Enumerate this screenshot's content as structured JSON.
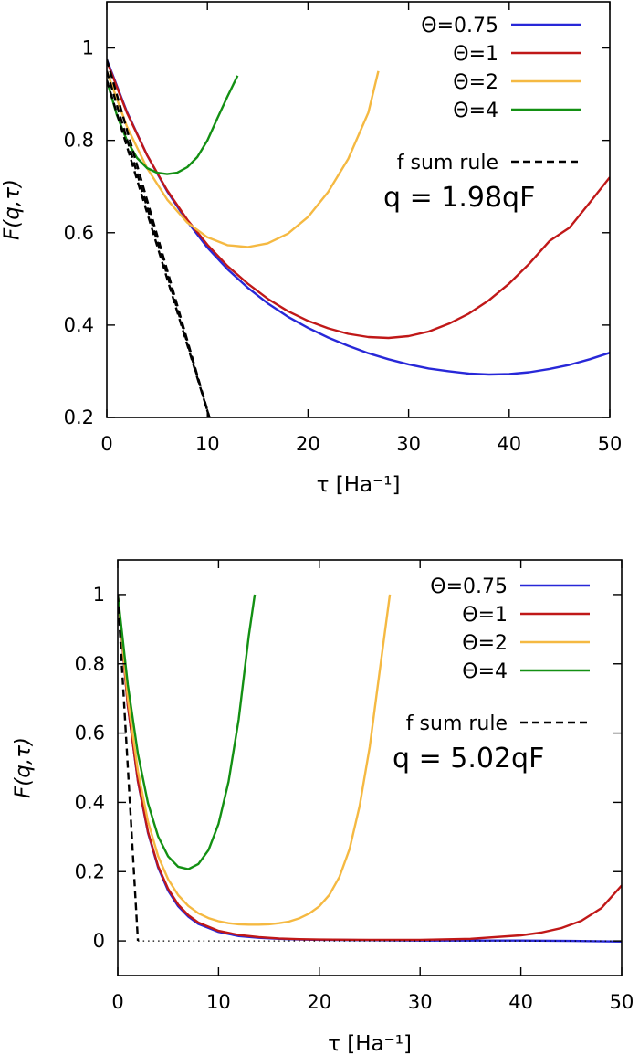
{
  "colors": {
    "theta_0.75": "#2828d8",
    "theta_1": "#c01818",
    "theta_2": "#f5b942",
    "theta_4": "#139013",
    "sum_rule": "#000000"
  },
  "chart_data": [
    {
      "type": "line",
      "xlabel": "τ [Ha⁻¹]",
      "ylabel": "F(q,τ)",
      "xlim": [
        0,
        50
      ],
      "ylim": [
        0.2,
        1.1
      ],
      "xticks": [
        "0",
        "10",
        "20",
        "30",
        "40",
        "50"
      ],
      "yticks": [
        "0.2",
        "0.4",
        "0.6",
        "0.8",
        "1"
      ],
      "grid": false,
      "legend": "top-right",
      "annotation": "q = 1.98qF",
      "series": [
        {
          "name": "Θ=0.75",
          "x": [
            0,
            2,
            4,
            6,
            8,
            10,
            12,
            14,
            16,
            18,
            20,
            22,
            24,
            26,
            28,
            30,
            32,
            34,
            36,
            38,
            40,
            42,
            44,
            46,
            48,
            50
          ],
          "y": [
            0.975,
            0.862,
            0.768,
            0.69,
            0.624,
            0.568,
            0.521,
            0.481,
            0.447,
            0.418,
            0.394,
            0.373,
            0.355,
            0.339,
            0.326,
            0.315,
            0.306,
            0.3,
            0.295,
            0.293,
            0.294,
            0.298,
            0.305,
            0.314,
            0.326,
            0.34
          ]
        },
        {
          "name": "Θ=1",
          "x": [
            0,
            2,
            4,
            6,
            8,
            10,
            12,
            14,
            16,
            18,
            20,
            22,
            24,
            26,
            28,
            30,
            32,
            34,
            36,
            38,
            40,
            42,
            44,
            46,
            48,
            50
          ],
          "y": [
            0.972,
            0.86,
            0.768,
            0.692,
            0.628,
            0.574,
            0.528,
            0.49,
            0.457,
            0.43,
            0.409,
            0.393,
            0.381,
            0.374,
            0.372,
            0.376,
            0.386,
            0.403,
            0.425,
            0.454,
            0.49,
            0.533,
            0.582,
            0.611,
            0.665,
            0.72
          ]
        },
        {
          "name": "Θ=2",
          "x": [
            0,
            2,
            4,
            6,
            8,
            10,
            12,
            14,
            16,
            18,
            20,
            22,
            24,
            26,
            27
          ],
          "y": [
            0.95,
            0.83,
            0.74,
            0.672,
            0.622,
            0.59,
            0.573,
            0.569,
            0.577,
            0.598,
            0.634,
            0.688,
            0.76,
            0.86,
            0.95
          ]
        },
        {
          "name": "Θ=4",
          "x": [
            0,
            1,
            2,
            3,
            4,
            5,
            6,
            7,
            8,
            9,
            10,
            11,
            12,
            13
          ],
          "y": [
            0.93,
            0.855,
            0.8,
            0.762,
            0.74,
            0.73,
            0.727,
            0.73,
            0.742,
            0.764,
            0.8,
            0.848,
            0.895,
            0.94
          ]
        },
        {
          "name": "f sum rule",
          "x": [
            0,
            10.2
          ],
          "y": [
            0.975,
            0.2
          ]
        },
        {
          "name": "",
          "x": [
            0,
            10.2
          ],
          "y": [
            0.95,
            0.2
          ]
        },
        {
          "name": "",
          "x": [
            0,
            10.2
          ],
          "y": [
            0.93,
            0.2
          ]
        }
      ]
    },
    {
      "type": "line",
      "xlabel": "τ [Ha⁻¹]",
      "ylabel": "F(q,τ)",
      "xlim": [
        0,
        50
      ],
      "ylim": [
        -0.1,
        1.1
      ],
      "xticks": [
        "0",
        "10",
        "20",
        "30",
        "40",
        "50"
      ],
      "yticks": [
        "0",
        "0.2",
        "0.4",
        "0.6",
        "0.8",
        "1"
      ],
      "grid": false,
      "legend": "top-right",
      "annotation": "q = 5.02qF",
      "series": [
        {
          "name": "Θ=0.75",
          "x": [
            0,
            1,
            2,
            3,
            4,
            5,
            6,
            7,
            8,
            10,
            12,
            14,
            16,
            18,
            20,
            25,
            30,
            35,
            40,
            45,
            50
          ],
          "y": [
            1.0,
            0.68,
            0.46,
            0.312,
            0.212,
            0.145,
            0.1,
            0.07,
            0.049,
            0.026,
            0.014,
            0.009,
            0.006,
            0.004,
            0.003,
            0.002,
            0.001,
            0.001,
            0.001,
            0.0,
            -0.002
          ]
        },
        {
          "name": "Θ=1",
          "x": [
            0,
            1,
            2,
            3,
            4,
            5,
            6,
            7,
            8,
            10,
            12,
            14,
            16,
            18,
            20,
            25,
            30,
            35,
            40,
            42,
            44,
            46,
            48,
            50
          ],
          "y": [
            1.0,
            0.68,
            0.462,
            0.315,
            0.216,
            0.15,
            0.105,
            0.074,
            0.053,
            0.029,
            0.017,
            0.011,
            0.007,
            0.005,
            0.004,
            0.003,
            0.003,
            0.006,
            0.016,
            0.024,
            0.037,
            0.058,
            0.095,
            0.16
          ]
        },
        {
          "name": "Θ=2",
          "x": [
            0,
            1,
            2,
            3,
            4,
            5,
            6,
            7,
            8,
            9,
            10,
            11,
            12,
            13,
            14,
            15,
            16,
            17,
            18,
            19,
            20,
            21,
            22,
            23,
            24,
            25,
            26,
            27
          ],
          "y": [
            1.0,
            0.7,
            0.49,
            0.345,
            0.245,
            0.178,
            0.132,
            0.101,
            0.08,
            0.066,
            0.057,
            0.051,
            0.048,
            0.047,
            0.047,
            0.048,
            0.051,
            0.056,
            0.065,
            0.079,
            0.1,
            0.133,
            0.185,
            0.265,
            0.39,
            0.56,
            0.78,
            1.0
          ]
        },
        {
          "name": "Θ=4",
          "x": [
            0,
            1,
            2,
            3,
            4,
            5,
            6,
            7,
            8,
            9,
            10,
            11,
            12,
            13,
            13.6
          ],
          "y": [
            1.0,
            0.74,
            0.54,
            0.398,
            0.302,
            0.244,
            0.214,
            0.207,
            0.222,
            0.262,
            0.338,
            0.46,
            0.64,
            0.88,
            1.0
          ]
        },
        {
          "name": "f sum rule",
          "x": [
            0,
            2
          ],
          "y": [
            1.0,
            0.0
          ]
        },
        {
          "name": "",
          "x": [
            2,
            50
          ],
          "y": [
            0,
            0
          ]
        }
      ]
    }
  ]
}
